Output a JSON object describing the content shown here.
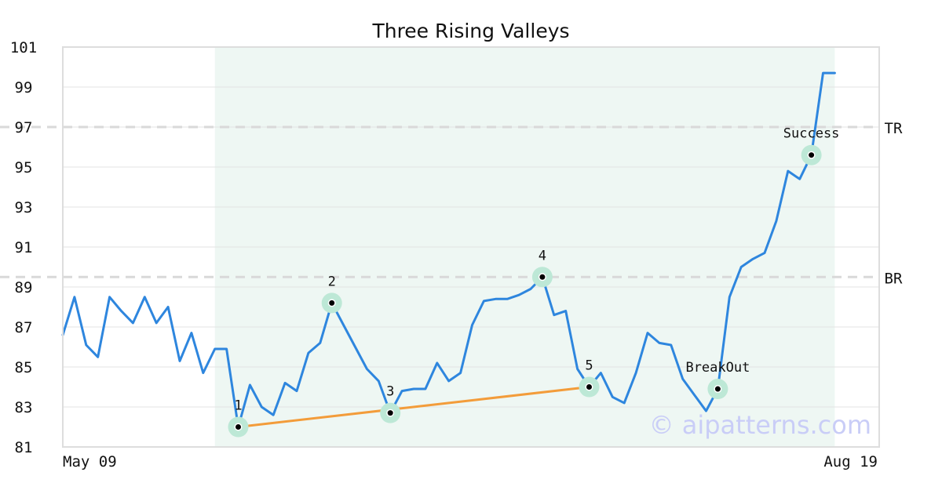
{
  "chart_data": {
    "type": "line",
    "title": "Three Rising Valleys",
    "xlabel": "",
    "ylabel": "",
    "ylim": [
      81,
      101
    ],
    "yticks": [
      81,
      83,
      85,
      87,
      89,
      91,
      93,
      95,
      97,
      99,
      101
    ],
    "x_labels": [
      "May 09",
      "Aug 19"
    ],
    "grid": true,
    "pattern_region": {
      "start_index": 13,
      "end_index": 66
    },
    "series": [
      {
        "values": [
          86.6,
          88.5,
          86.1,
          85.5,
          88.5,
          87.8,
          87.2,
          88.5,
          87.2,
          88.0,
          85.3,
          86.7,
          84.7,
          85.9,
          85.9,
          82.0,
          84.1,
          83.0,
          82.6,
          84.2,
          83.8,
          85.7,
          86.2,
          88.2,
          87.1,
          86.0,
          84.9,
          84.3,
          82.7,
          83.8,
          83.9,
          83.9,
          85.2,
          84.3,
          84.7,
          87.1,
          88.3,
          88.4,
          88.4,
          88.6,
          88.9,
          89.5,
          87.6,
          87.8,
          84.9,
          84.0,
          84.7,
          83.5,
          83.2,
          84.7,
          86.7,
          86.2,
          86.1,
          84.4,
          83.6,
          82.8,
          83.9,
          88.5,
          90.0,
          90.4,
          90.7,
          92.3,
          94.8,
          94.4,
          95.6,
          99.7,
          99.7
        ],
        "color": "#2e86de"
      }
    ],
    "support_line": {
      "from_index": 15,
      "to_index": 45,
      "from_value": 82.0,
      "to_value": 84.0,
      "color": "#f39c3a"
    },
    "reference_lines": [
      {
        "label": "TR",
        "value": 97.0
      },
      {
        "label": "BR",
        "value": 89.5
      }
    ],
    "annotations": [
      {
        "label": "1",
        "index": 15,
        "value": 82.0,
        "label_side": "above"
      },
      {
        "label": "2",
        "index": 23,
        "value": 88.2,
        "label_side": "above"
      },
      {
        "label": "3",
        "index": 28,
        "value": 82.7,
        "label_side": "above"
      },
      {
        "label": "4",
        "index": 41,
        "value": 89.5,
        "label_side": "above"
      },
      {
        "label": "5",
        "index": 45,
        "value": 84.0,
        "label_side": "above"
      },
      {
        "label": "BreakOut",
        "index": 56,
        "value": 83.9,
        "label_side": "above"
      },
      {
        "label": "Success",
        "index": 64,
        "value": 95.6,
        "label_side": "above"
      }
    ],
    "colors": {
      "line": "#2e86de",
      "support": "#f39c3a",
      "highlight": "#eef7f3",
      "marker_ring": "#bde8d6",
      "grid": "#e3e3e3",
      "reference": "#d9d9d9",
      "frame": "#dddddd"
    }
  },
  "watermark": "© aipatterns.com"
}
